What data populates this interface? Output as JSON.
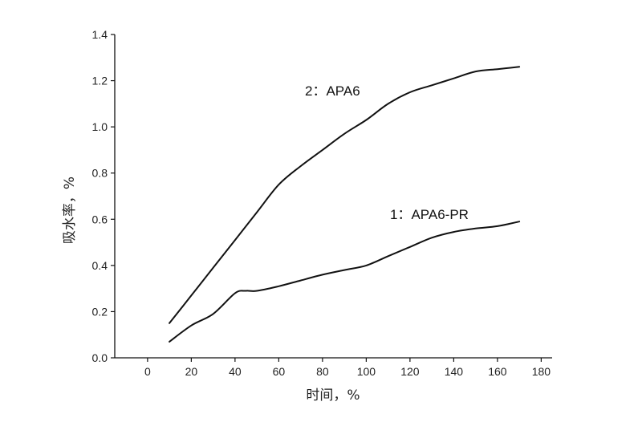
{
  "chart_data": {
    "type": "line",
    "title": "",
    "xlabel": "时间，%",
    "ylabel": "吸水率，%",
    "xlim": [
      -15,
      185
    ],
    "ylim": [
      0,
      1.4
    ],
    "x_ticks": [
      0,
      20,
      40,
      60,
      80,
      100,
      120,
      140,
      160,
      180
    ],
    "y_ticks": [
      0.0,
      0.2,
      0.4,
      0.6,
      0.8,
      1.0,
      1.2,
      1.4
    ],
    "y_tick_labels": [
      "0.0",
      "0.2",
      "0.4",
      "0.6",
      "0.8",
      "1.0",
      "1.2",
      "1.4"
    ],
    "grid": false,
    "series": [
      {
        "name": "2：APA6",
        "x": [
          10,
          20,
          30,
          40,
          50,
          60,
          70,
          80,
          90,
          100,
          110,
          120,
          130,
          140,
          150,
          160,
          170
        ],
        "values": [
          0.15,
          0.27,
          0.39,
          0.51,
          0.63,
          0.75,
          0.83,
          0.9,
          0.97,
          1.03,
          1.1,
          1.15,
          1.18,
          1.21,
          1.24,
          1.25,
          1.26
        ]
      },
      {
        "name": "1：APA6-PR",
        "x": [
          10,
          20,
          30,
          40,
          45,
          50,
          60,
          70,
          80,
          90,
          100,
          110,
          120,
          130,
          140,
          150,
          160,
          170
        ],
        "values": [
          0.07,
          0.14,
          0.19,
          0.28,
          0.29,
          0.29,
          0.31,
          0.335,
          0.36,
          0.38,
          0.4,
          0.44,
          0.48,
          0.52,
          0.545,
          0.56,
          0.57,
          0.59
        ]
      }
    ]
  }
}
